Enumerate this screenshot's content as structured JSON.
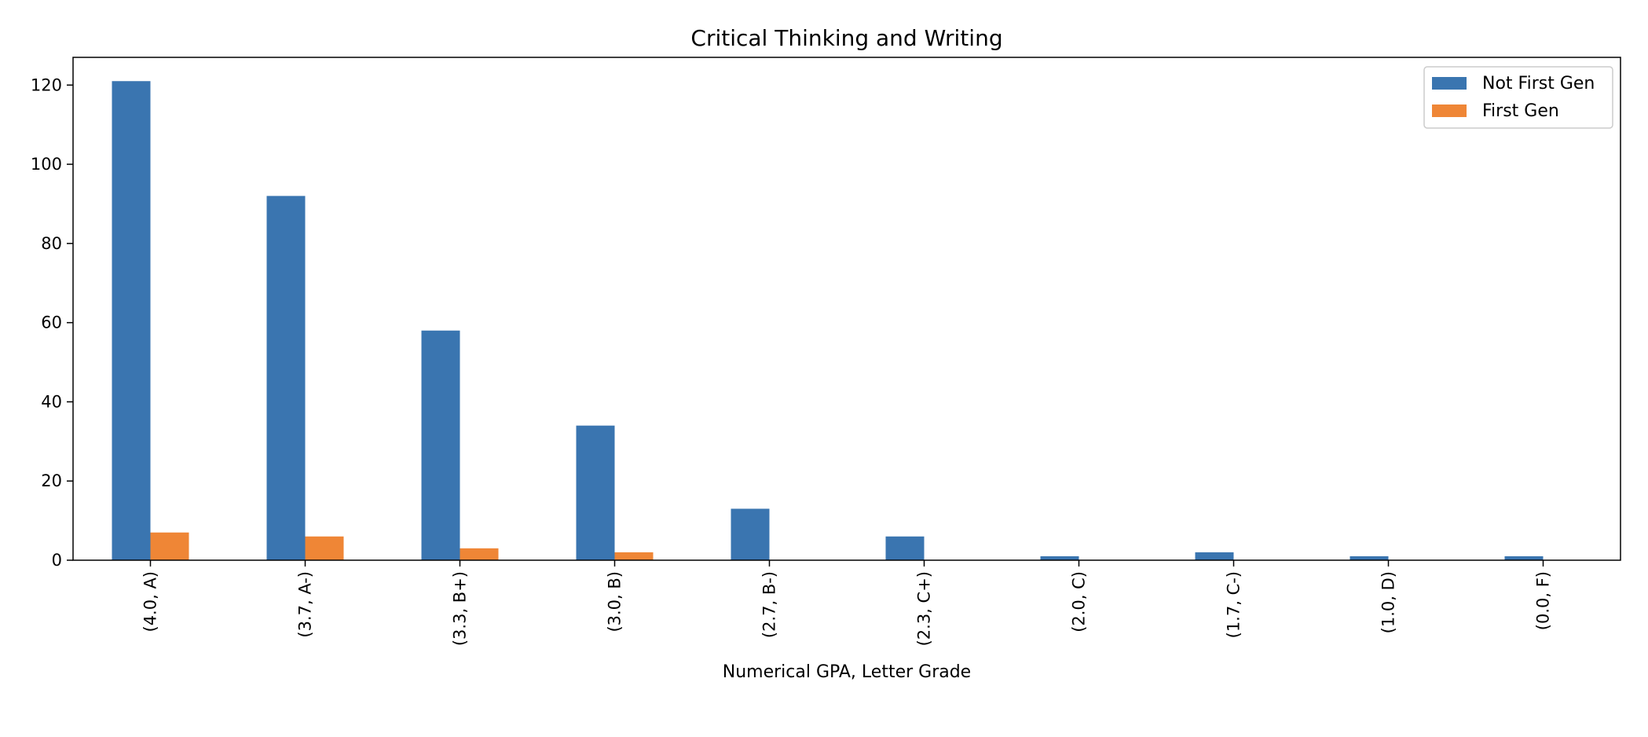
{
  "chart_data": {
    "type": "bar",
    "title": "Critical Thinking and Writing",
    "xlabel": "Numerical GPA, Letter Grade",
    "ylabel": "",
    "categories": [
      "(4.0, A)",
      "(3.7, A-)",
      "(3.3, B+)",
      "(3.0, B)",
      "(2.7, B-)",
      "(2.3, C+)",
      "(2.0, C)",
      "(1.7, C-)",
      "(1.0, D)",
      "(0.0, F)"
    ],
    "series": [
      {
        "name": "Not First Gen",
        "color": "#3a75b0",
        "values": [
          121,
          92,
          58,
          34,
          13,
          6,
          1,
          2,
          1,
          1
        ]
      },
      {
        "name": "First Gen",
        "color": "#ef8636",
        "values": [
          7,
          6,
          3,
          2,
          0,
          0,
          0,
          0,
          0,
          0
        ]
      }
    ],
    "ylim": [
      0,
      127
    ],
    "yticks": [
      0,
      20,
      40,
      60,
      80,
      100,
      120
    ],
    "grid": false,
    "legend": "top-right"
  }
}
